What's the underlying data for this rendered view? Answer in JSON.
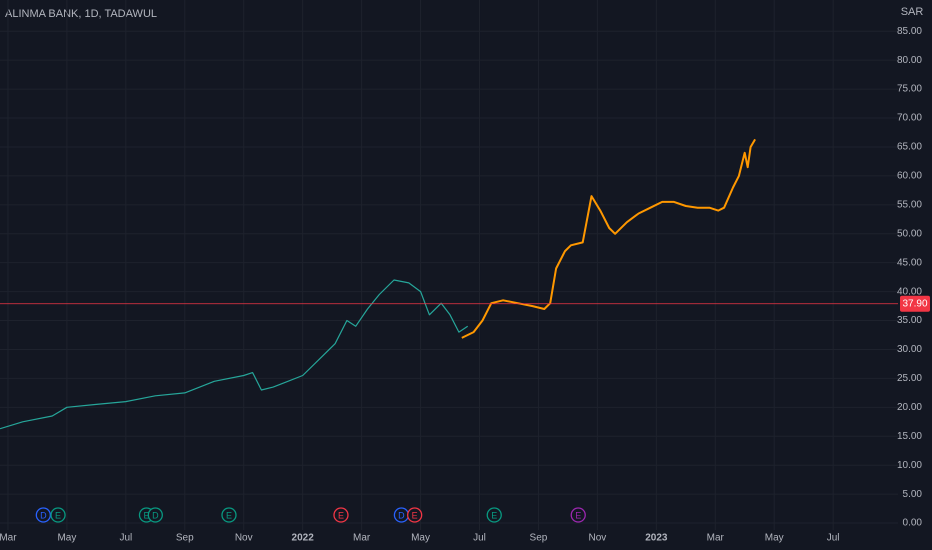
{
  "chart_data": {
    "type": "line",
    "title": "ALINMA BANK, 1D, TADAWUL",
    "currency": "SAR",
    "grid": true,
    "xlim": [
      -0.27,
      30.2
    ],
    "ylim": [
      -1.2,
      90.4
    ],
    "xticks": [
      {
        "value": 0,
        "label": "Mar"
      },
      {
        "value": 2,
        "label": "May"
      },
      {
        "value": 4,
        "label": "Jul"
      },
      {
        "value": 6,
        "label": "Sep"
      },
      {
        "value": 8,
        "label": "Nov"
      },
      {
        "value": 10,
        "label": "2022"
      },
      {
        "value": 12,
        "label": "Mar"
      },
      {
        "value": 14,
        "label": "May"
      },
      {
        "value": 16,
        "label": "Jul"
      },
      {
        "value": 18,
        "label": "Sep"
      },
      {
        "value": 20,
        "label": "Nov"
      },
      {
        "value": 22,
        "label": "2023"
      },
      {
        "value": 24,
        "label": "Mar"
      },
      {
        "value": 26,
        "label": "May"
      },
      {
        "value": 28,
        "label": "Jul"
      }
    ],
    "yticks": [
      {
        "value": 0,
        "label": "0.00"
      },
      {
        "value": 5,
        "label": "5.00"
      },
      {
        "value": 10,
        "label": "10.00"
      },
      {
        "value": 15,
        "label": "15.00"
      },
      {
        "value": 20,
        "label": "20.00"
      },
      {
        "value": 25,
        "label": "25.00"
      },
      {
        "value": 30,
        "label": "30.00"
      },
      {
        "value": 35,
        "label": "35.00"
      },
      {
        "value": 40,
        "label": "40.00"
      },
      {
        "value": 45,
        "label": "45.00"
      },
      {
        "value": 50,
        "label": "50.00"
      },
      {
        "value": 55,
        "label": "55.00"
      },
      {
        "value": 60,
        "label": "60.00"
      },
      {
        "value": 65,
        "label": "65.00"
      },
      {
        "value": 70,
        "label": "70.00"
      },
      {
        "value": 75,
        "label": "75.00"
      },
      {
        "value": 80,
        "label": "80.00"
      },
      {
        "value": 85,
        "label": "85.00"
      }
    ],
    "price_line": {
      "value": 37.9,
      "label": "37.90",
      "color": "#f23645"
    },
    "series": [
      {
        "color": "#26a69a",
        "x": [
          -0.27,
          0.5,
          1.5,
          2,
          3,
          4,
          5,
          6,
          7,
          8,
          8.3,
          8.6,
          9,
          10,
          10.7,
          11.1,
          11.5,
          11.8,
          12.2,
          12.6,
          13.1,
          13.6,
          14,
          14.3,
          14.7,
          15,
          15.3,
          15.6
        ],
        "values": [
          16.3,
          17.5,
          18.5,
          20,
          20.5,
          21,
          22,
          22.5,
          24.5,
          25.5,
          26,
          23,
          23.5,
          25.5,
          29,
          31,
          35,
          34,
          37,
          39.5,
          42,
          41.5,
          40,
          36,
          38,
          36,
          33,
          34
        ]
      },
      {
        "color": "#ff9800",
        "x": [
          15.4,
          15.8,
          16.1,
          16.4,
          16.8,
          17.3,
          17.8,
          18.2,
          18.4,
          18.6,
          18.9,
          19.1,
          19.5,
          19.8,
          20.1,
          20.4,
          20.6,
          21,
          21.4,
          21.8,
          22.2,
          22.6,
          23,
          23.4,
          23.8,
          24.1,
          24.3,
          24.6,
          24.8,
          25.0,
          25.1,
          25.2,
          25.35
        ],
        "values": [
          32,
          33,
          35,
          38,
          38.5,
          38,
          37.5,
          37,
          38,
          44,
          47,
          48,
          48.5,
          56.5,
          54,
          51,
          50,
          52,
          53.5,
          54.5,
          55.5,
          55.5,
          54.8,
          54.5,
          54.5,
          54,
          54.5,
          58,
          60,
          64,
          61.5,
          65,
          66.3
        ]
      }
    ],
    "events": [
      {
        "x": 1.2,
        "label": "D",
        "color": "#2962ff"
      },
      {
        "x": 1.7,
        "label": "E",
        "color": "#089981"
      },
      {
        "x": 4.7,
        "label": "E",
        "color": "#089981"
      },
      {
        "x": 5.0,
        "label": "D",
        "color": "#089981"
      },
      {
        "x": 7.5,
        "label": "E",
        "color": "#089981"
      },
      {
        "x": 11.3,
        "label": "E",
        "color": "#f23645"
      },
      {
        "x": 13.35,
        "label": "D",
        "color": "#2962ff"
      },
      {
        "x": 13.8,
        "label": "E",
        "color": "#f23645"
      },
      {
        "x": 16.5,
        "label": "E",
        "color": "#089981"
      },
      {
        "x": 19.35,
        "label": "E",
        "color": "#9c27b0"
      }
    ]
  }
}
